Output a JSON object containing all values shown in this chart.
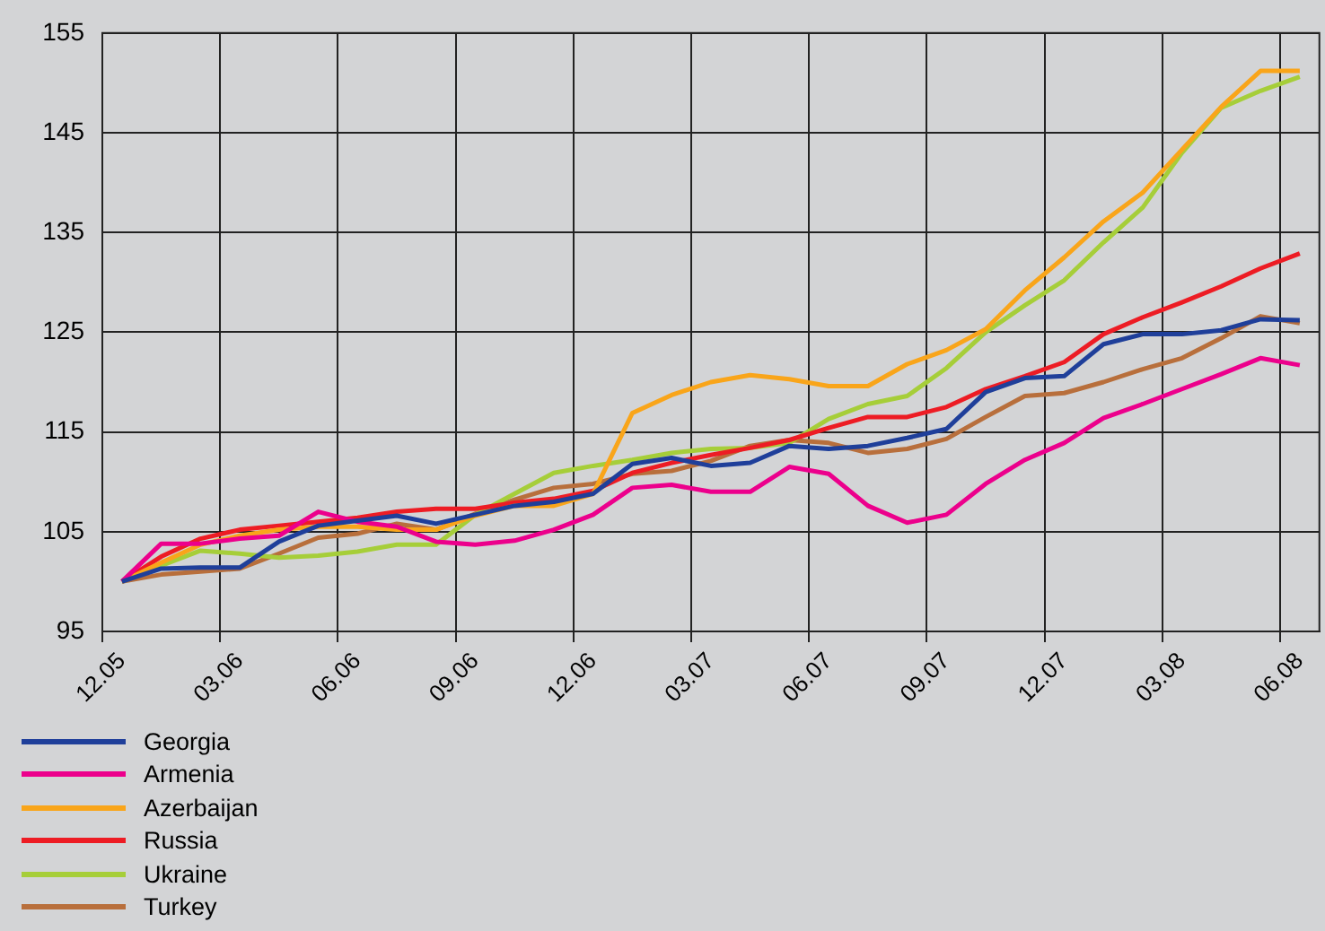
{
  "chart_data": {
    "type": "line",
    "categories": [
      "12.05",
      null,
      null,
      "03.06",
      null,
      null,
      "06.06",
      null,
      null,
      "09.06",
      null,
      null,
      "12.06",
      null,
      null,
      "03.07",
      null,
      null,
      "06.07",
      null,
      null,
      "09.07",
      null,
      null,
      "12.07",
      null,
      null,
      "03.08",
      null,
      null,
      "06.08"
    ],
    "series": [
      {
        "name": "Georgia",
        "color": "#1f3f9a",
        "values": [
          100,
          101.3,
          101.4,
          101.4,
          104,
          105.6,
          106.1,
          106.6,
          105.8,
          106.7,
          107.6,
          108,
          108.8,
          111.8,
          112.4,
          111.6,
          111.9,
          113.6,
          113.3,
          113.6,
          114.4,
          115.3,
          119,
          120.4,
          120.6,
          123.8,
          124.8,
          124.8,
          125.2,
          126.3,
          126.2
        ]
      },
      {
        "name": "Armenia",
        "color": "#ec008c",
        "values": [
          100,
          103.8,
          103.8,
          104.3,
          104.6,
          107,
          106,
          105.5,
          104,
          103.7,
          104.1,
          105.2,
          106.7,
          109.4,
          109.7,
          109,
          109,
          111.5,
          110.8,
          107.6,
          105.9,
          106.7,
          109.8,
          112.2,
          113.9,
          116.4,
          117.8,
          119.3,
          120.8,
          122.4,
          121.7
        ]
      },
      {
        "name": "Azerbaijan",
        "color": "#f9a51a",
        "values": [
          100,
          101.9,
          103.7,
          104.6,
          105.2,
          105.5,
          105.5,
          105.2,
          105.2,
          106.6,
          107.6,
          107.6,
          108.8,
          116.9,
          118.7,
          120,
          120.7,
          120.3,
          119.6,
          119.6,
          121.8,
          123.2,
          125.3,
          129.2,
          132.5,
          136.1,
          139,
          143.3,
          147.6,
          151.2,
          151.2
        ]
      },
      {
        "name": "Russia",
        "color": "#ed1c24",
        "values": [
          100,
          102.5,
          104.3,
          105.2,
          105.6,
          106,
          106.4,
          107,
          107.3,
          107.3,
          107.9,
          108.3,
          109.1,
          110.9,
          111.9,
          112.7,
          113.4,
          114.2,
          115.4,
          116.5,
          116.5,
          117.5,
          119.3,
          120.6,
          122,
          124.8,
          126.5,
          128,
          129.6,
          131.4,
          132.9
        ]
      },
      {
        "name": "Ukraine",
        "color": "#a6ce39",
        "values": [
          100,
          101.6,
          103.1,
          102.8,
          102.4,
          102.6,
          103,
          103.7,
          103.7,
          106.7,
          108.8,
          110.9,
          111.6,
          112.2,
          112.9,
          113.3,
          113.4,
          113.9,
          116.3,
          117.8,
          118.6,
          121.4,
          125,
          127.7,
          130.2,
          134,
          137.5,
          143,
          147.5,
          149.2,
          150.6
        ]
      },
      {
        "name": "Turkey",
        "color": "#b86f3c",
        "values": [
          100,
          100.7,
          101,
          101.3,
          102.8,
          104.4,
          104.8,
          105.8,
          105.2,
          106.8,
          108.2,
          109.4,
          109.8,
          110.8,
          111.1,
          112.1,
          113.6,
          114.2,
          113.9,
          112.9,
          113.3,
          114.3,
          116.5,
          118.6,
          118.9,
          120,
          121.3,
          122.4,
          124.4,
          126.6,
          125.9
        ]
      }
    ],
    "ylim": [
      95,
      155
    ],
    "yticks": [
      95,
      105,
      115,
      125,
      135,
      145,
      155
    ],
    "grid": true,
    "legend": "bottom left",
    "marker": "none"
  }
}
